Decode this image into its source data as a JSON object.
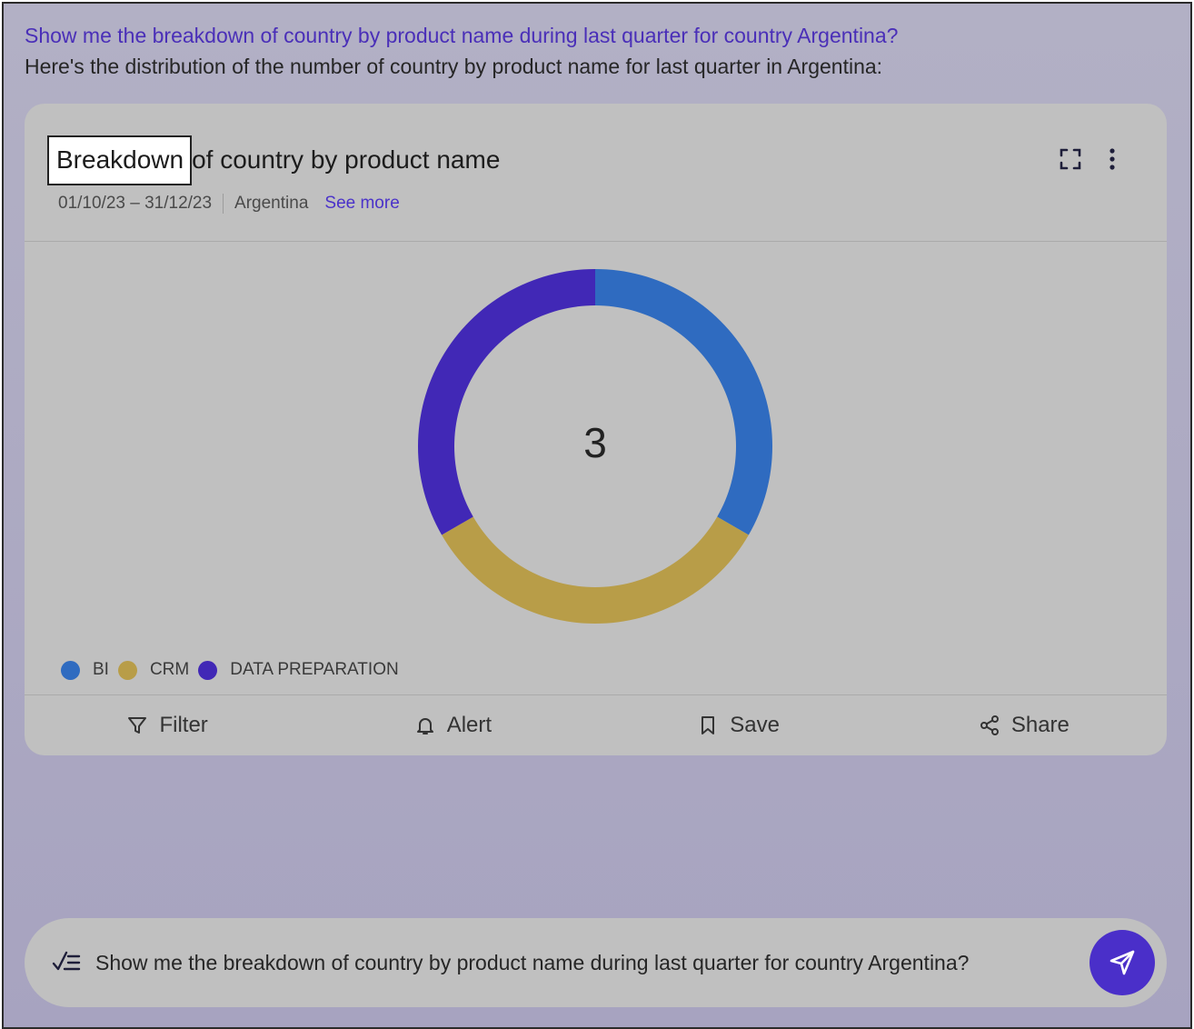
{
  "conversation": {
    "question": "Show me the breakdown of country by product name during last quarter for country Argentina?",
    "answer": "Here's the distribution of the number of country by product name for last quarter in Argentina:"
  },
  "card": {
    "title_highlight": "Breakdown",
    "title_rest": "of country by product name",
    "date_range": "01/10/23 – 31/12/23",
    "country": "Argentina",
    "see_more": "See more",
    "expand_icon": "expand-icon",
    "more_icon": "more-vertical-icon"
  },
  "chart_data": {
    "type": "pie",
    "center_label": "3",
    "categories": [
      "BI",
      "CRM",
      "DATA PREPARATION"
    ],
    "values": [
      1,
      1,
      1
    ],
    "colors": [
      "#2f6bc0",
      "#b89d48",
      "#4128b6"
    ],
    "legend_position": "bottom-left"
  },
  "actions": [
    {
      "label": "Filter",
      "icon": "filter-icon"
    },
    {
      "label": "Alert",
      "icon": "bell-icon"
    },
    {
      "label": "Save",
      "icon": "bookmark-icon"
    },
    {
      "label": "Share",
      "icon": "share-icon"
    }
  ],
  "input": {
    "value": "Show me the breakdown of country by product name during last quarter for country Argentina?",
    "icon": "list-check-icon",
    "send_icon": "send-icon"
  }
}
